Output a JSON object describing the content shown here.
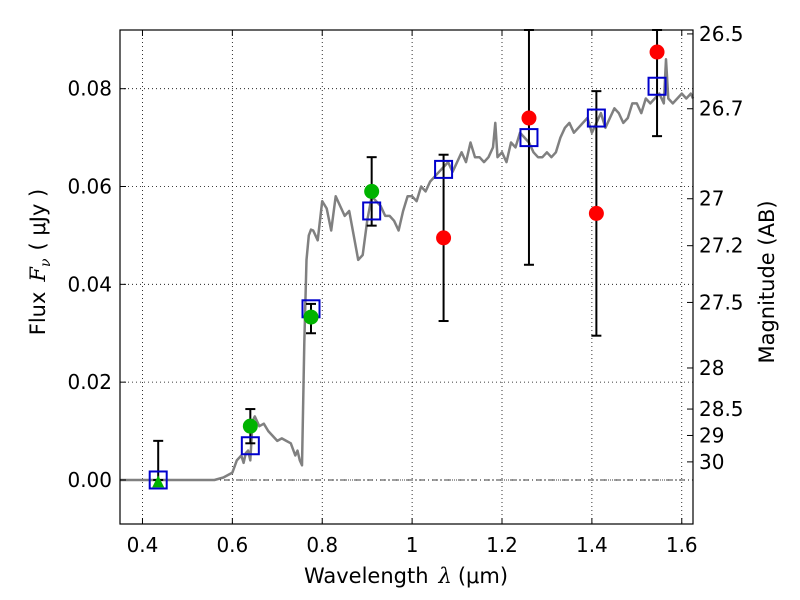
{
  "chart_data": {
    "type": "scatter",
    "xlabel": "Wavelength",
    "xlabel_math": "λ",
    "xlabel_unit": "(μm)",
    "ylabel": "Flux",
    "ylabel_math": "F",
    "ylabel_sub": "ν",
    "ylabel_unit": "( μJy )",
    "y2label": "Magnitude (AB)",
    "xlim": [
      0.35,
      1.625
    ],
    "ylim": [
      -0.009,
      0.092
    ],
    "grid": true,
    "x_ticks": [
      {
        "value": 0.4,
        "label": "0.4"
      },
      {
        "value": 0.6,
        "label": "0.6"
      },
      {
        "value": 0.8,
        "label": "0.8"
      },
      {
        "value": 1.0,
        "label": "1"
      },
      {
        "value": 1.2,
        "label": "1.2"
      },
      {
        "value": 1.4,
        "label": "1.4"
      },
      {
        "value": 1.6,
        "label": "1.6"
      }
    ],
    "y_ticks": [
      {
        "value": 0.0,
        "label": "0.00"
      },
      {
        "value": 0.02,
        "label": "0.02"
      },
      {
        "value": 0.04,
        "label": "0.04"
      },
      {
        "value": 0.06,
        "label": "0.06"
      },
      {
        "value": 0.08,
        "label": "0.08"
      }
    ],
    "mag_ticks": [
      {
        "flux": 0.0912,
        "label": "26.5"
      },
      {
        "flux": 0.0759,
        "label": "26.7"
      },
      {
        "flux": 0.0575,
        "label": "27"
      },
      {
        "flux": 0.0479,
        "label": "27.2"
      },
      {
        "flux": 0.0363,
        "label": "27.5"
      },
      {
        "flux": 0.0229,
        "label": "28"
      },
      {
        "flux": 0.0145,
        "label": "28.5"
      },
      {
        "flux": 0.0091,
        "label": "29"
      },
      {
        "flux": 0.0037,
        "label": "30"
      }
    ],
    "colors": {
      "model": "#808080",
      "model_flux": "#0000cc",
      "detection": "#00b300",
      "upper": "#ff0000",
      "errorbar": "#000000"
    },
    "model_spectrum": {
      "x": [
        0.35,
        0.4,
        0.45,
        0.5,
        0.55,
        0.56,
        0.58,
        0.6,
        0.61,
        0.62,
        0.625,
        0.63,
        0.635,
        0.64,
        0.645,
        0.65,
        0.66,
        0.67,
        0.68,
        0.69,
        0.7,
        0.71,
        0.72,
        0.73,
        0.74,
        0.745,
        0.75,
        0.755,
        0.76,
        0.765,
        0.77,
        0.775,
        0.78,
        0.79,
        0.8,
        0.81,
        0.82,
        0.83,
        0.84,
        0.85,
        0.86,
        0.87,
        0.88,
        0.89,
        0.9,
        0.91,
        0.92,
        0.93,
        0.94,
        0.95,
        0.96,
        0.97,
        0.98,
        0.99,
        1.0,
        1.01,
        1.02,
        1.03,
        1.04,
        1.05,
        1.06,
        1.07,
        1.08,
        1.09,
        1.1,
        1.11,
        1.12,
        1.13,
        1.14,
        1.15,
        1.16,
        1.17,
        1.18,
        1.185,
        1.19,
        1.2,
        1.21,
        1.22,
        1.23,
        1.24,
        1.25,
        1.26,
        1.27,
        1.28,
        1.29,
        1.3,
        1.31,
        1.32,
        1.33,
        1.34,
        1.35,
        1.36,
        1.37,
        1.38,
        1.39,
        1.4,
        1.41,
        1.42,
        1.43,
        1.44,
        1.45,
        1.46,
        1.47,
        1.48,
        1.49,
        1.5,
        1.51,
        1.52,
        1.53,
        1.54,
        1.55,
        1.56,
        1.565,
        1.57,
        1.58,
        1.59,
        1.6,
        1.61,
        1.62,
        1.625
      ],
      "y": [
        0.0,
        0.0,
        0.0,
        0.0,
        0.0,
        0.0,
        0.0005,
        0.0015,
        0.004,
        0.005,
        0.0035,
        0.0055,
        0.006,
        0.004,
        0.012,
        0.013,
        0.011,
        0.0115,
        0.01,
        0.009,
        0.008,
        0.0085,
        0.008,
        0.0075,
        0.005,
        0.006,
        0.004,
        0.003,
        0.028,
        0.045,
        0.05,
        0.0512,
        0.051,
        0.049,
        0.057,
        0.0555,
        0.051,
        0.058,
        0.056,
        0.054,
        0.055,
        0.05,
        0.045,
        0.046,
        0.053,
        0.058,
        0.057,
        0.056,
        0.054,
        0.054,
        0.053,
        0.051,
        0.055,
        0.058,
        0.058,
        0.057,
        0.06,
        0.059,
        0.061,
        0.062,
        0.063,
        0.064,
        0.065,
        0.063,
        0.065,
        0.067,
        0.065,
        0.069,
        0.066,
        0.066,
        0.065,
        0.066,
        0.068,
        0.073,
        0.066,
        0.067,
        0.065,
        0.069,
        0.068,
        0.071,
        0.07,
        0.069,
        0.067,
        0.066,
        0.066,
        0.067,
        0.066,
        0.067,
        0.07,
        0.072,
        0.073,
        0.071,
        0.072,
        0.073,
        0.074,
        0.071,
        0.073,
        0.075,
        0.072,
        0.074,
        0.076,
        0.075,
        0.073,
        0.074,
        0.077,
        0.077,
        0.075,
        0.078,
        0.077,
        0.078,
        0.079,
        0.077,
        0.086,
        0.078,
        0.077,
        0.078,
        0.079,
        0.078,
        0.079,
        0.078
      ]
    },
    "series": [
      {
        "name": "model_flux",
        "marker": "open-square",
        "x": [
          0.435,
          0.64,
          0.775,
          0.91,
          1.07,
          1.26,
          1.41,
          1.545
        ],
        "y": [
          0.0,
          0.007,
          0.035,
          0.055,
          0.0635,
          0.07,
          0.074,
          0.0805
        ]
      },
      {
        "name": "detection",
        "marker": "filled-circle",
        "x": [
          0.64,
          0.775,
          0.91
        ],
        "y": [
          0.011,
          0.0333,
          0.059
        ]
      },
      {
        "name": "detection_triangle",
        "marker": "filled-triangle",
        "x": [
          0.435
        ],
        "y": [
          -0.0005
        ]
      },
      {
        "name": "upper",
        "marker": "filled-circle",
        "x": [
          1.07,
          1.26,
          1.41,
          1.545
        ],
        "y": [
          0.0495,
          0.074,
          0.0545,
          0.0875
        ]
      }
    ],
    "error_bars": [
      {
        "x": 0.435,
        "lo": 0.0,
        "hi": 0.008
      },
      {
        "x": 0.64,
        "lo": 0.0075,
        "hi": 0.0145
      },
      {
        "x": 0.775,
        "lo": 0.03,
        "hi": 0.036
      },
      {
        "x": 0.91,
        "lo": 0.052,
        "hi": 0.066
      },
      {
        "x": 1.07,
        "lo": 0.0325,
        "hi": 0.0665
      },
      {
        "x": 1.26,
        "lo": 0.044,
        "hi": 0.092
      },
      {
        "x": 1.41,
        "lo": 0.0295,
        "hi": 0.0795
      },
      {
        "x": 1.545,
        "lo": 0.0703,
        "hi": 0.092
      }
    ]
  }
}
